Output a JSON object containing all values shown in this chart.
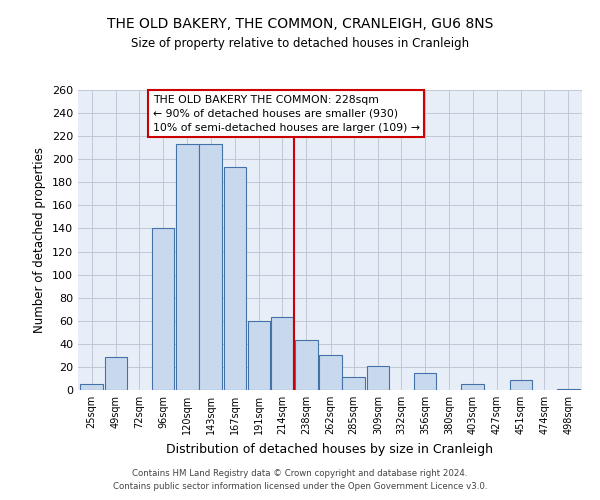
{
  "title": "THE OLD BAKERY, THE COMMON, CRANLEIGH, GU6 8NS",
  "subtitle": "Size of property relative to detached houses in Cranleigh",
  "xlabel": "Distribution of detached houses by size in Cranleigh",
  "ylabel": "Number of detached properties",
  "bin_labels": [
    "25sqm",
    "49sqm",
    "72sqm",
    "96sqm",
    "120sqm",
    "143sqm",
    "167sqm",
    "191sqm",
    "214sqm",
    "238sqm",
    "262sqm",
    "285sqm",
    "309sqm",
    "332sqm",
    "356sqm",
    "380sqm",
    "403sqm",
    "427sqm",
    "451sqm",
    "474sqm",
    "498sqm"
  ],
  "bar_heights": [
    5,
    29,
    0,
    140,
    213,
    213,
    193,
    60,
    63,
    43,
    30,
    11,
    21,
    0,
    15,
    0,
    5,
    0,
    9,
    0,
    1
  ],
  "bar_color": "#c8d9ee",
  "bar_edge_color": "#4472a8",
  "grid_color": "#c0c8d8",
  "background_color": "#e8eef8",
  "vline_color": "#cc0000",
  "ylim": [
    0,
    260
  ],
  "yticks": [
    0,
    20,
    40,
    60,
    80,
    100,
    120,
    140,
    160,
    180,
    200,
    220,
    240,
    260
  ],
  "annotation_title": "THE OLD BAKERY THE COMMON: 228sqm",
  "annotation_line1": "← 90% of detached houses are smaller (930)",
  "annotation_line2": "10% of semi-detached houses are larger (109) →",
  "annotation_box_edge": "#cc0000",
  "footer1": "Contains HM Land Registry data © Crown copyright and database right 2024.",
  "footer2": "Contains public sector information licensed under the Open Government Licence v3.0.",
  "bin_width": 23
}
